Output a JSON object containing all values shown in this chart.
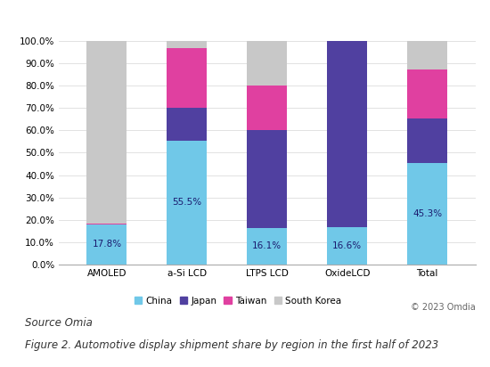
{
  "categories": [
    "AMOLED",
    "a-Si LCD",
    "LTPS LCD",
    "OxideLCD",
    "Total"
  ],
  "regions": [
    "China",
    "Japan",
    "Taiwan",
    "South Korea"
  ],
  "colors": [
    "#70C8E8",
    "#5040A0",
    "#E040A0",
    "#C8C8C8"
  ],
  "values": {
    "China": [
      17.8,
      55.5,
      16.1,
      16.6,
      45.3
    ],
    "Japan": [
      0.2,
      14.5,
      44.0,
      83.4,
      20.0
    ],
    "Taiwan": [
      0.2,
      27.0,
      20.0,
      0.0,
      22.0
    ],
    "South Korea": [
      81.8,
      3.0,
      19.9,
      0.0,
      12.7
    ]
  },
  "bar_labels": {
    "China": [
      "17.8%",
      "55.5%",
      "16.1%",
      "16.6%",
      "45.3%"
    ]
  },
  "yticks": [
    0,
    10,
    20,
    30,
    40,
    50,
    60,
    70,
    80,
    90,
    100
  ],
  "ytick_labels": [
    "0.0%",
    "10.0%",
    "20.0%",
    "30.0%",
    "40.0%",
    "50.0%",
    "60.0%",
    "70.0%",
    "80.0%",
    "90.0%",
    "100.0%"
  ],
  "source_text": "Source Omia",
  "caption_text": "Figure 2. Automotive display shipment share by region in the first half of 2023",
  "copyright_text": "© 2023 Omdia",
  "background_color": "#FFFFFF",
  "bar_width": 0.5,
  "label_fontsize": 7.5,
  "tick_fontsize": 7.5,
  "legend_fontsize": 7.5,
  "source_fontsize": 8.5,
  "caption_fontsize": 8.5
}
